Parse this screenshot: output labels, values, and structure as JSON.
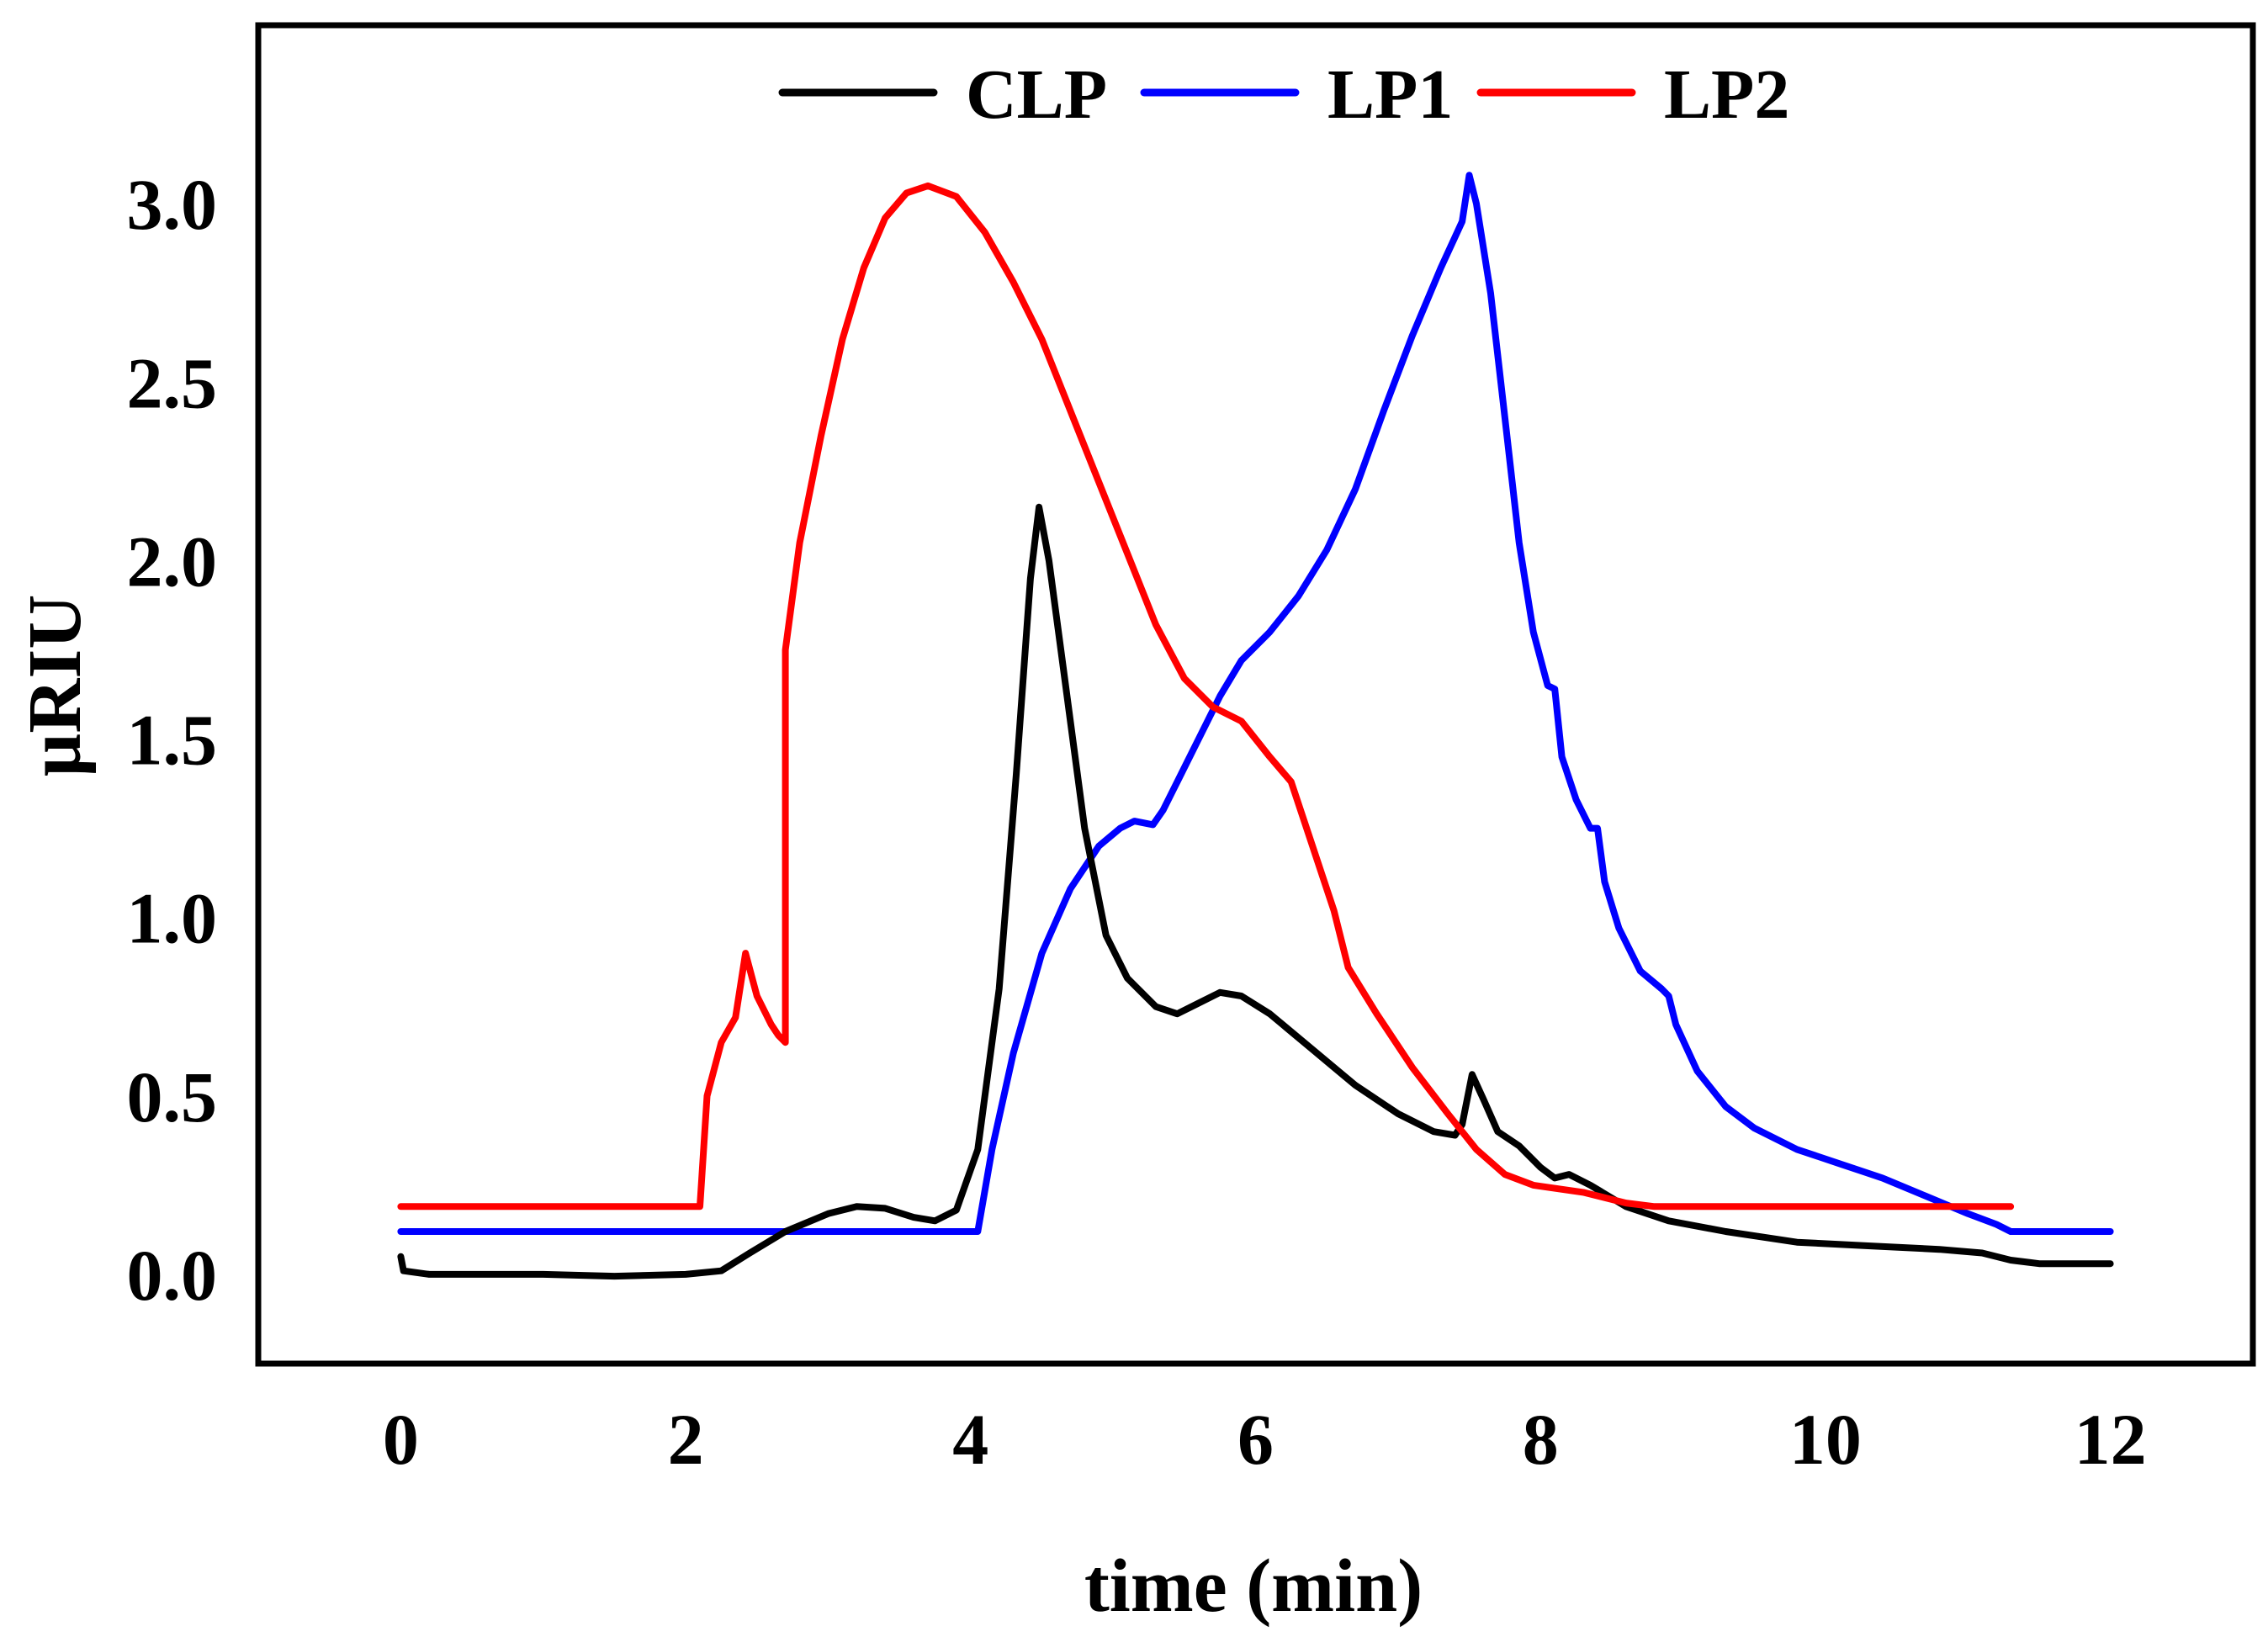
{
  "chart_data": {
    "type": "line",
    "title": "",
    "xlabel": "time (min)",
    "ylabel": "µRIU",
    "xlim": [
      -1,
      13
    ],
    "ylim": [
      -0.25,
      3.5
    ],
    "grid": false,
    "legend_position": "top-center",
    "x_ticks": [
      0,
      2,
      4,
      6,
      8,
      10,
      12
    ],
    "x_tick_labels": [
      "0",
      "2",
      "4",
      "6",
      "8",
      "10",
      "12"
    ],
    "y_ticks": [
      0.0,
      0.5,
      1.0,
      1.5,
      2.0,
      2.5,
      3.0
    ],
    "y_tick_labels": [
      "0.0",
      "0.5",
      "1.0",
      "1.5",
      "2.0",
      "2.5",
      "3.0"
    ],
    "series": [
      {
        "name": "CLP",
        "color": "#000000",
        "points": [
          [
            0,
            0.05
          ],
          [
            0.02,
            0.01
          ],
          [
            0.2,
            0.0
          ],
          [
            0.5,
            0.0
          ],
          [
            1,
            0.0
          ],
          [
            1.5,
            -0.005
          ],
          [
            2,
            0.0
          ],
          [
            2.25,
            0.01
          ],
          [
            2.45,
            0.06
          ],
          [
            2.7,
            0.12
          ],
          [
            3,
            0.17
          ],
          [
            3.2,
            0.19
          ],
          [
            3.4,
            0.185
          ],
          [
            3.6,
            0.16
          ],
          [
            3.75,
            0.15
          ],
          [
            3.9,
            0.18
          ],
          [
            4.05,
            0.35
          ],
          [
            4.2,
            0.8
          ],
          [
            4.32,
            1.4
          ],
          [
            4.42,
            1.95
          ],
          [
            4.48,
            2.15
          ],
          [
            4.55,
            2.0
          ],
          [
            4.65,
            1.7
          ],
          [
            4.8,
            1.25
          ],
          [
            4.95,
            0.95
          ],
          [
            5.1,
            0.83
          ],
          [
            5.3,
            0.75
          ],
          [
            5.45,
            0.73
          ],
          [
            5.6,
            0.76
          ],
          [
            5.75,
            0.79
          ],
          [
            5.9,
            0.78
          ],
          [
            6.1,
            0.73
          ],
          [
            6.4,
            0.63
          ],
          [
            6.7,
            0.53
          ],
          [
            7,
            0.45
          ],
          [
            7.25,
            0.4
          ],
          [
            7.4,
            0.39
          ],
          [
            7.45,
            0.42
          ],
          [
            7.52,
            0.56
          ],
          [
            7.6,
            0.49
          ],
          [
            7.7,
            0.4
          ],
          [
            7.85,
            0.36
          ],
          [
            8,
            0.3
          ],
          [
            8.1,
            0.27
          ],
          [
            8.2,
            0.28
          ],
          [
            8.35,
            0.25
          ],
          [
            8.6,
            0.19
          ],
          [
            8.9,
            0.15
          ],
          [
            9.3,
            0.12
          ],
          [
            9.8,
            0.09
          ],
          [
            10.3,
            0.08
          ],
          [
            10.8,
            0.07
          ],
          [
            11.1,
            0.06
          ],
          [
            11.3,
            0.04
          ],
          [
            11.5,
            0.03
          ],
          [
            12,
            0.03
          ]
        ]
      },
      {
        "name": "LP1",
        "color": "#0000ff",
        "points": [
          [
            0,
            0.12
          ],
          [
            1,
            0.12
          ],
          [
            2,
            0.12
          ],
          [
            3,
            0.12
          ],
          [
            4.05,
            0.12
          ],
          [
            4.15,
            0.35
          ],
          [
            4.3,
            0.62
          ],
          [
            4.5,
            0.9
          ],
          [
            4.7,
            1.08
          ],
          [
            4.9,
            1.2
          ],
          [
            5.05,
            1.25
          ],
          [
            5.15,
            1.27
          ],
          [
            5.28,
            1.26
          ],
          [
            5.35,
            1.3
          ],
          [
            5.45,
            1.38
          ],
          [
            5.6,
            1.5
          ],
          [
            5.75,
            1.62
          ],
          [
            5.9,
            1.72
          ],
          [
            6.1,
            1.8
          ],
          [
            6.3,
            1.9
          ],
          [
            6.5,
            2.03
          ],
          [
            6.7,
            2.2
          ],
          [
            6.9,
            2.42
          ],
          [
            7.1,
            2.63
          ],
          [
            7.3,
            2.82
          ],
          [
            7.45,
            2.95
          ],
          [
            7.5,
            3.08
          ],
          [
            7.55,
            3.0
          ],
          [
            7.65,
            2.75
          ],
          [
            7.75,
            2.4
          ],
          [
            7.85,
            2.05
          ],
          [
            7.95,
            1.8
          ],
          [
            8.05,
            1.65
          ],
          [
            8.1,
            1.64
          ],
          [
            8.15,
            1.45
          ],
          [
            8.25,
            1.33
          ],
          [
            8.35,
            1.25
          ],
          [
            8.4,
            1.25
          ],
          [
            8.45,
            1.1
          ],
          [
            8.55,
            0.97
          ],
          [
            8.7,
            0.85
          ],
          [
            8.85,
            0.8
          ],
          [
            8.9,
            0.78
          ],
          [
            8.95,
            0.7
          ],
          [
            9.1,
            0.57
          ],
          [
            9.3,
            0.47
          ],
          [
            9.5,
            0.41
          ],
          [
            9.8,
            0.35
          ],
          [
            10.1,
            0.31
          ],
          [
            10.4,
            0.27
          ],
          [
            10.7,
            0.22
          ],
          [
            11,
            0.17
          ],
          [
            11.2,
            0.14
          ],
          [
            11.3,
            0.12
          ],
          [
            12,
            0.12
          ]
        ]
      },
      {
        "name": "LP2",
        "color": "#ff0000",
        "points": [
          [
            0,
            0.19
          ],
          [
            1,
            0.19
          ],
          [
            2,
            0.19
          ],
          [
            2.1,
            0.19
          ],
          [
            2.15,
            0.5
          ],
          [
            2.25,
            0.65
          ],
          [
            2.35,
            0.72
          ],
          [
            2.42,
            0.9
          ],
          [
            2.5,
            0.78
          ],
          [
            2.6,
            0.7
          ],
          [
            2.65,
            0.67
          ],
          [
            2.7,
            0.65
          ],
          [
            2.7,
            1.75
          ],
          [
            2.8,
            2.05
          ],
          [
            2.95,
            2.35
          ],
          [
            3.1,
            2.62
          ],
          [
            3.25,
            2.82
          ],
          [
            3.4,
            2.96
          ],
          [
            3.55,
            3.03
          ],
          [
            3.7,
            3.05
          ],
          [
            3.9,
            3.02
          ],
          [
            4.1,
            2.92
          ],
          [
            4.3,
            2.78
          ],
          [
            4.5,
            2.62
          ],
          [
            4.7,
            2.42
          ],
          [
            4.9,
            2.22
          ],
          [
            5.1,
            2.02
          ],
          [
            5.3,
            1.82
          ],
          [
            5.5,
            1.67
          ],
          [
            5.7,
            1.59
          ],
          [
            5.9,
            1.55
          ],
          [
            6.1,
            1.45
          ],
          [
            6.25,
            1.38
          ],
          [
            6.4,
            1.2
          ],
          [
            6.55,
            1.02
          ],
          [
            6.65,
            0.86
          ],
          [
            6.85,
            0.73
          ],
          [
            7.1,
            0.58
          ],
          [
            7.35,
            0.45
          ],
          [
            7.55,
            0.35
          ],
          [
            7.75,
            0.28
          ],
          [
            7.95,
            0.25
          ],
          [
            8.3,
            0.23
          ],
          [
            8.6,
            0.2
          ],
          [
            8.8,
            0.19
          ],
          [
            9.5,
            0.19
          ],
          [
            10.5,
            0.19
          ],
          [
            11.3,
            0.19
          ]
        ]
      }
    ]
  }
}
